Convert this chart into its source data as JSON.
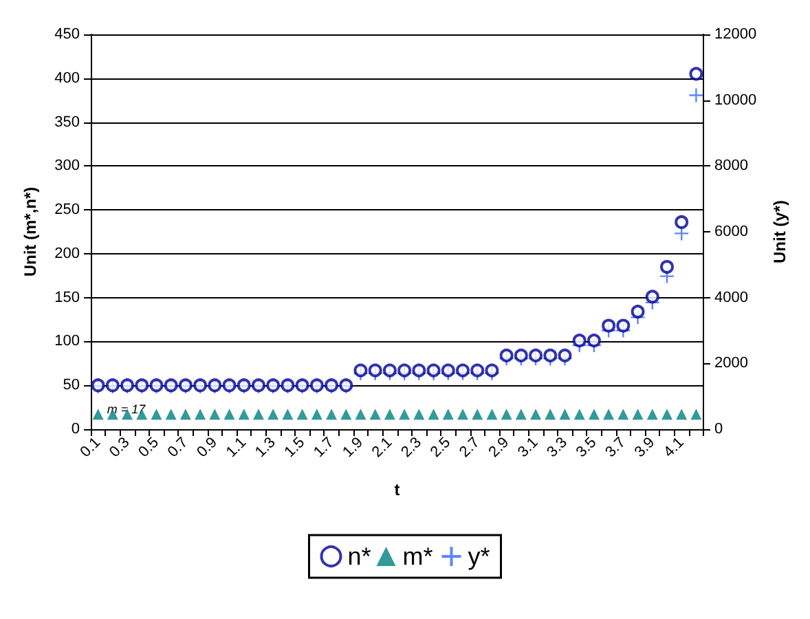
{
  "chart_data": {
    "type": "scatter",
    "xlabel": "t",
    "ylabel": "Unit (m*,n*)",
    "y2label": "Unit (y*)",
    "categories": [
      "0.1",
      null,
      "0.3",
      null,
      "0.5",
      null,
      "0.7",
      null,
      "0.9",
      null,
      "1.1",
      null,
      "1.3",
      null,
      "1.5",
      null,
      "1.7",
      null,
      "1.9",
      null,
      "2.1",
      null,
      "2.3",
      null,
      "2.5",
      null,
      "2.7",
      null,
      "2.9",
      null,
      "3.1",
      null,
      "3.3",
      null,
      "3.5",
      null,
      "3.7",
      null,
      "3.9",
      null,
      "4.1",
      null
    ],
    "series": [
      {
        "name": "n*",
        "color": "#000099",
        "marker": "circle",
        "values": [
          50,
          50,
          50,
          50,
          50,
          50,
          50,
          50,
          50,
          50,
          50,
          50,
          50,
          50,
          50,
          50,
          50,
          50,
          67,
          67,
          67,
          67,
          67,
          67,
          67,
          67,
          67,
          67,
          84,
          84,
          84,
          84,
          84,
          101,
          101,
          118,
          118,
          134,
          151,
          185,
          236,
          405
        ]
      },
      {
        "name": "m*",
        "color": "#008080",
        "marker": "triangle",
        "values": [
          17,
          17,
          17,
          17,
          17,
          17,
          17,
          17,
          17,
          17,
          17,
          17,
          17,
          17,
          17,
          17,
          17,
          17,
          17,
          17,
          17,
          17,
          17,
          17,
          17,
          17,
          17,
          17,
          17,
          17,
          17,
          17,
          17,
          17,
          17,
          17,
          17,
          17,
          17,
          17,
          17,
          17
        ]
      },
      {
        "name": "y*",
        "color": "#3366ff",
        "marker": "cross",
        "axis": "y2",
        "values": [
          1300,
          1300,
          1300,
          1300,
          1300,
          1300,
          1300,
          1300,
          1300,
          1300,
          1300,
          1300,
          1300,
          1300,
          1300,
          1300,
          1300,
          1300,
          1700,
          1700,
          1700,
          1700,
          1700,
          1700,
          1700,
          1700,
          1700,
          1700,
          2150,
          2150,
          2150,
          2150,
          2150,
          2550,
          2550,
          3000,
          3000,
          3400,
          3850,
          4650,
          5950,
          10150
        ]
      }
    ],
    "ylim": [
      0,
      450
    ],
    "yticks": [
      0,
      50,
      100,
      150,
      200,
      250,
      300,
      350,
      400,
      450
    ],
    "y2lim": [
      0,
      12000
    ],
    "y2ticks": [
      0,
      2000,
      4000,
      6000,
      8000,
      10000,
      12000
    ],
    "grid": "y",
    "legend": "bottom",
    "annotations": [
      "m = 17"
    ]
  }
}
